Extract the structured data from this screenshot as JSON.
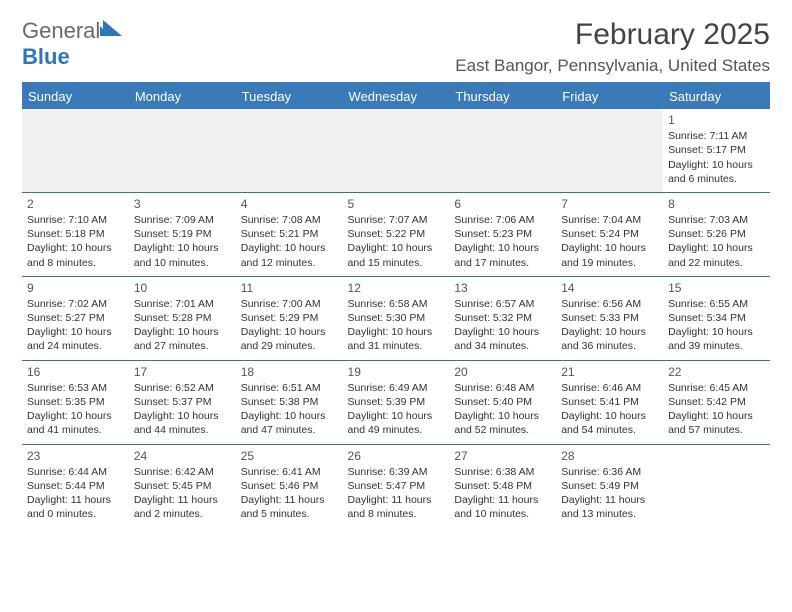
{
  "logo": {
    "word1": "General",
    "word2": "Blue"
  },
  "header": {
    "month_year": "February 2025",
    "location": "East Bangor, Pennsylvania, United States"
  },
  "colors": {
    "accent": "#3a7ab8",
    "rule": "#3a6f9e",
    "text": "#333333",
    "muted": "#555555",
    "logo_gray": "#6a6a6a",
    "logo_blue": "#2f76b8",
    "emptyweek_bg": "#f1f1f1",
    "background": "#ffffff"
  },
  "day_names": [
    "Sunday",
    "Monday",
    "Tuesday",
    "Wednesday",
    "Thursday",
    "Friday",
    "Saturday"
  ],
  "weeks": [
    [
      null,
      null,
      null,
      null,
      null,
      null,
      {
        "n": "1",
        "sr": "7:11 AM",
        "ss": "5:17 PM",
        "dh": "10",
        "dm": "6"
      }
    ],
    [
      {
        "n": "2",
        "sr": "7:10 AM",
        "ss": "5:18 PM",
        "dh": "10",
        "dm": "8"
      },
      {
        "n": "3",
        "sr": "7:09 AM",
        "ss": "5:19 PM",
        "dh": "10",
        "dm": "10"
      },
      {
        "n": "4",
        "sr": "7:08 AM",
        "ss": "5:21 PM",
        "dh": "10",
        "dm": "12"
      },
      {
        "n": "5",
        "sr": "7:07 AM",
        "ss": "5:22 PM",
        "dh": "10",
        "dm": "15"
      },
      {
        "n": "6",
        "sr": "7:06 AM",
        "ss": "5:23 PM",
        "dh": "10",
        "dm": "17"
      },
      {
        "n": "7",
        "sr": "7:04 AM",
        "ss": "5:24 PM",
        "dh": "10",
        "dm": "19"
      },
      {
        "n": "8",
        "sr": "7:03 AM",
        "ss": "5:26 PM",
        "dh": "10",
        "dm": "22"
      }
    ],
    [
      {
        "n": "9",
        "sr": "7:02 AM",
        "ss": "5:27 PM",
        "dh": "10",
        "dm": "24"
      },
      {
        "n": "10",
        "sr": "7:01 AM",
        "ss": "5:28 PM",
        "dh": "10",
        "dm": "27"
      },
      {
        "n": "11",
        "sr": "7:00 AM",
        "ss": "5:29 PM",
        "dh": "10",
        "dm": "29"
      },
      {
        "n": "12",
        "sr": "6:58 AM",
        "ss": "5:30 PM",
        "dh": "10",
        "dm": "31"
      },
      {
        "n": "13",
        "sr": "6:57 AM",
        "ss": "5:32 PM",
        "dh": "10",
        "dm": "34"
      },
      {
        "n": "14",
        "sr": "6:56 AM",
        "ss": "5:33 PM",
        "dh": "10",
        "dm": "36"
      },
      {
        "n": "15",
        "sr": "6:55 AM",
        "ss": "5:34 PM",
        "dh": "10",
        "dm": "39"
      }
    ],
    [
      {
        "n": "16",
        "sr": "6:53 AM",
        "ss": "5:35 PM",
        "dh": "10",
        "dm": "41"
      },
      {
        "n": "17",
        "sr": "6:52 AM",
        "ss": "5:37 PM",
        "dh": "10",
        "dm": "44"
      },
      {
        "n": "18",
        "sr": "6:51 AM",
        "ss": "5:38 PM",
        "dh": "10",
        "dm": "47"
      },
      {
        "n": "19",
        "sr": "6:49 AM",
        "ss": "5:39 PM",
        "dh": "10",
        "dm": "49"
      },
      {
        "n": "20",
        "sr": "6:48 AM",
        "ss": "5:40 PM",
        "dh": "10",
        "dm": "52"
      },
      {
        "n": "21",
        "sr": "6:46 AM",
        "ss": "5:41 PM",
        "dh": "10",
        "dm": "54"
      },
      {
        "n": "22",
        "sr": "6:45 AM",
        "ss": "5:42 PM",
        "dh": "10",
        "dm": "57"
      }
    ],
    [
      {
        "n": "23",
        "sr": "6:44 AM",
        "ss": "5:44 PM",
        "dh": "11",
        "dm": "0"
      },
      {
        "n": "24",
        "sr": "6:42 AM",
        "ss": "5:45 PM",
        "dh": "11",
        "dm": "2"
      },
      {
        "n": "25",
        "sr": "6:41 AM",
        "ss": "5:46 PM",
        "dh": "11",
        "dm": "5"
      },
      {
        "n": "26",
        "sr": "6:39 AM",
        "ss": "5:47 PM",
        "dh": "11",
        "dm": "8"
      },
      {
        "n": "27",
        "sr": "6:38 AM",
        "ss": "5:48 PM",
        "dh": "11",
        "dm": "10"
      },
      {
        "n": "28",
        "sr": "6:36 AM",
        "ss": "5:49 PM",
        "dh": "11",
        "dm": "13"
      },
      null
    ]
  ],
  "labels": {
    "sunrise": "Sunrise: ",
    "sunset": "Sunset: ",
    "daylight_pre": "Daylight: ",
    "hours_word": " hours",
    "and_word": "and ",
    "minutes_word": " minutes."
  }
}
